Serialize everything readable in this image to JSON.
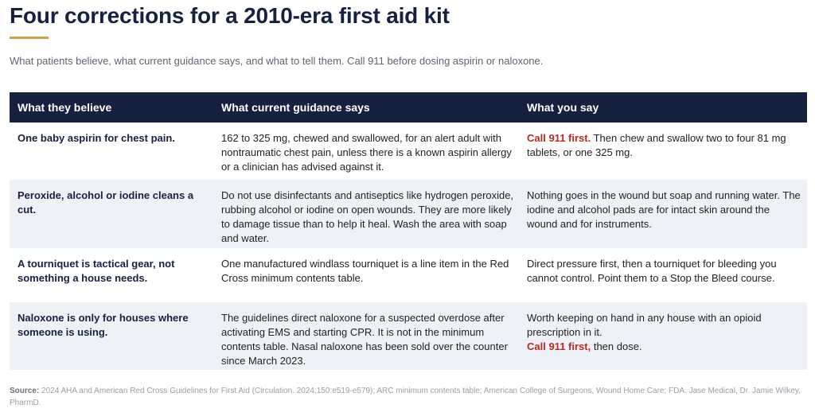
{
  "header": {
    "title": "Four corrections for a 2010-era first aid kit",
    "subtitle": "What patients believe, what current guidance says, and what to tell them. Call 911 before dosing aspirin or naloxone.",
    "accent_color": "#c8a14a"
  },
  "table": {
    "columns": [
      "What they believe",
      "What current guidance says",
      "What you say"
    ],
    "header_color": "#16213f",
    "alert_color": "#c0281e",
    "rows": [
      {
        "belief": "One baby aspirin for chest pain.",
        "guidance": "162 to 325 mg, chewed and swallowed, for an alert adult with nontraumatic chest pain, unless there is a known aspirin allergy or a clinician has advised against it.",
        "say_alert": "Call 911 first.",
        "say_text": " Then chew and swallow two to four 81 mg tablets, or one 325 mg."
      },
      {
        "belief": "Peroxide, alcohol or iodine cleans a cut.",
        "guidance": "Do not use disinfectants and antiseptics like hydrogen peroxide, rubbing alcohol or iodine on open wounds. They are more likely to damage tissue than to help it heal. Wash the area with soap and water.",
        "say_text": "Nothing goes in the wound but soap and running water. The iodine and alcohol pads are for intact skin around the wound and for instruments."
      },
      {
        "belief": "A tourniquet is tactical gear, not something a house needs.",
        "guidance": "One manufactured windlass tourniquet is a line item in the Red Cross minimum contents table.",
        "say_text": "Direct pressure first, then a tourniquet for bleeding you cannot control. Point them to a Stop the Bleed course."
      },
      {
        "belief": "Naloxone is only for houses where someone is using.",
        "guidance": "The guidelines direct naloxone for a suspected overdose after activating EMS and starting CPR. It is not in the minimum contents table. Nasal naloxone has been sold over the counter since March 2023.",
        "say_text": "Worth keeping on hand in any house with an opioid prescription in it.",
        "say_alert": "Call 911 first,",
        "say_tail": " then dose."
      }
    ]
  },
  "source": {
    "label": "Source:",
    "text": " 2024 AHA and American Red Cross Guidelines for First Aid (Circulation. 2024;150:e519-e579); ARC minimum contents table; American College of Surgeons, Wound Home Care; FDA. Jase Medical, Dr. Jamie Wilkey, PharmD."
  }
}
